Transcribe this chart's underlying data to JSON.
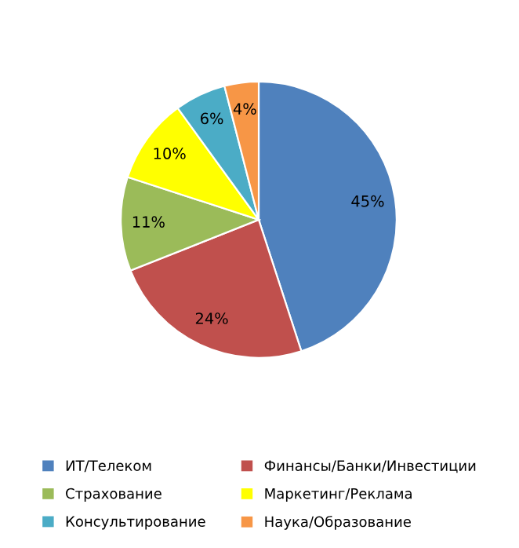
{
  "chart_data": {
    "type": "pie",
    "categories": [
      "ИТ/Телеком",
      "Финансы/Банки/Инвестиции",
      "Страхование",
      "Маркетинг/Реклама",
      "Консультирование",
      "Наука/Образование"
    ],
    "values": [
      45,
      24,
      11,
      10,
      6,
      4
    ],
    "colors": [
      "#4f81bd",
      "#c0504d",
      "#9bbb59",
      "#ffff00",
      "#4bacc6",
      "#f79646"
    ],
    "value_labels": [
      "45%",
      "24%",
      "11%",
      "10%",
      "6%",
      "4%"
    ],
    "legend": "bottom"
  }
}
